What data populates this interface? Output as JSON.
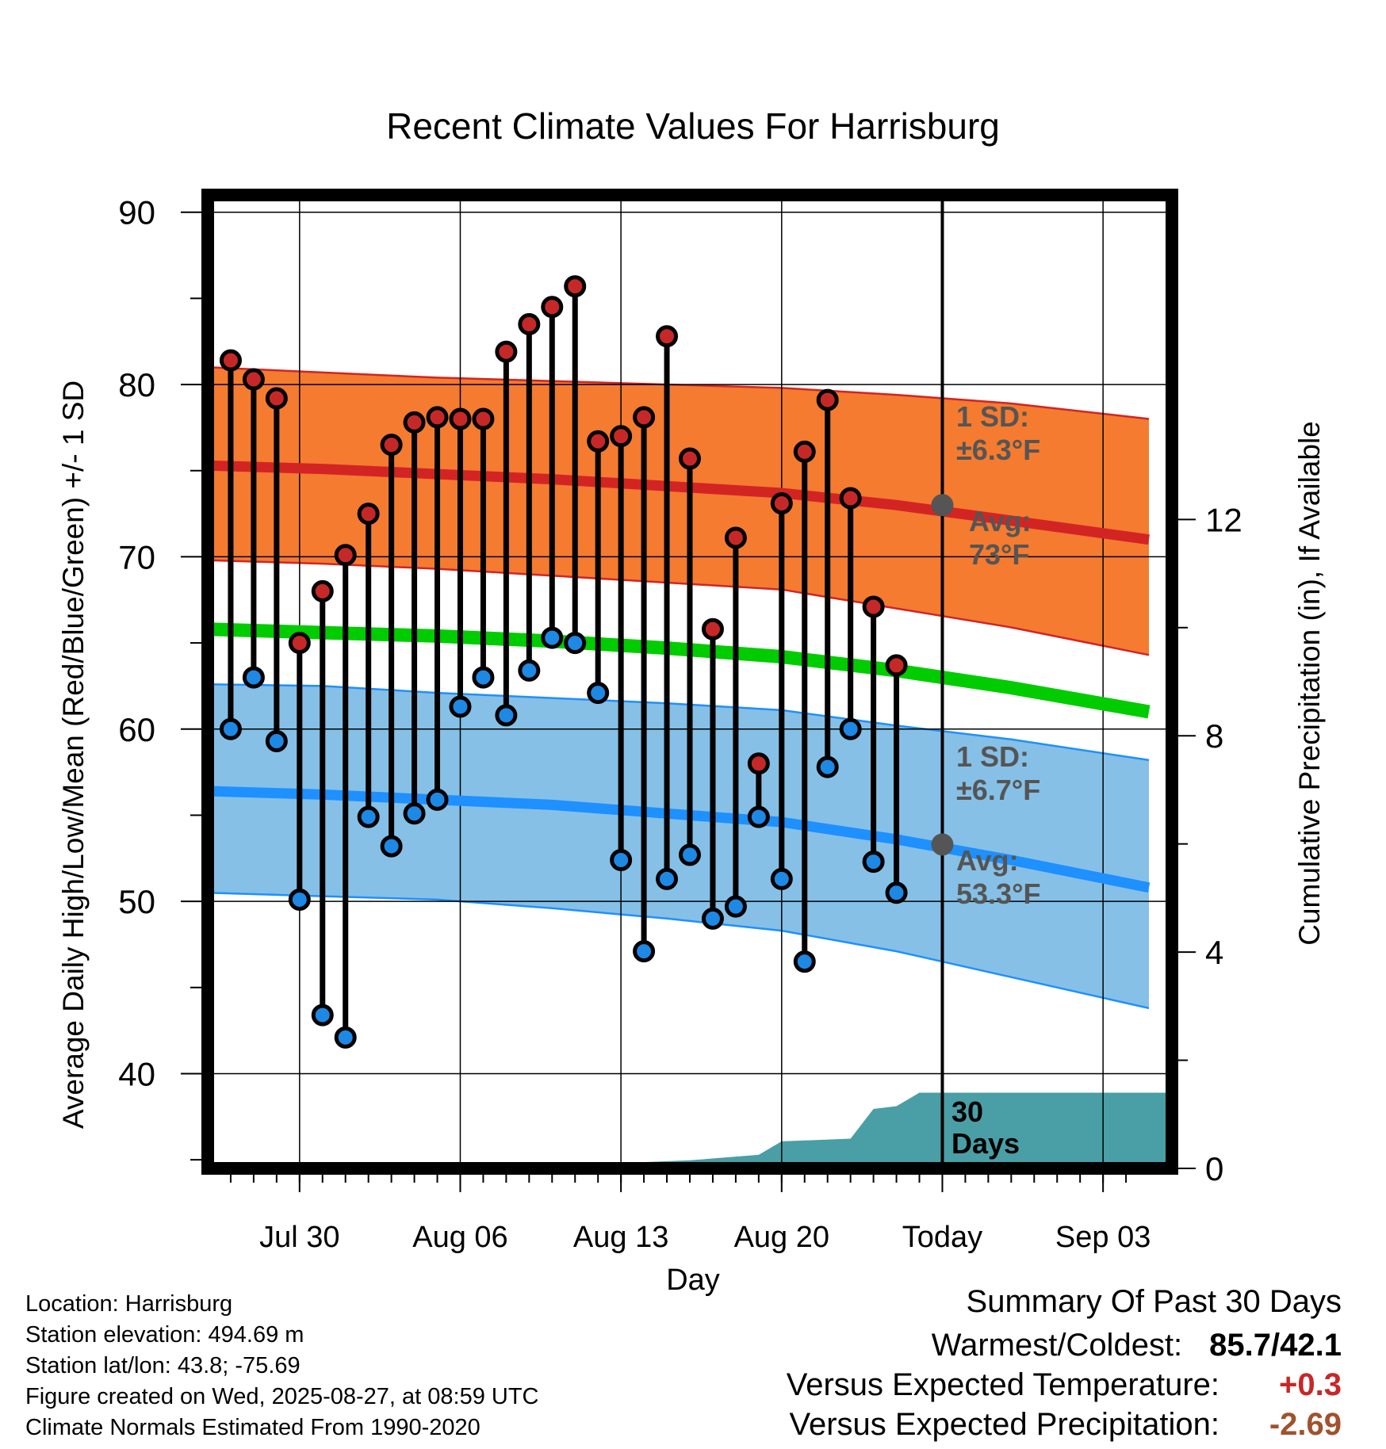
{
  "title": "Recent Climate Values For Harrisburg",
  "chart_data": {
    "type": "line",
    "title": "Recent Climate Values For Harrisburg",
    "xlabel": "Day",
    "ylabel": "Average Daily High/Low/Mean (Red/Blue/Green) +/- 1 SD",
    "y2label": "Cumulative Precipitation (in), If Available",
    "ylim": [
      34.5,
      91
    ],
    "y_ticks": [
      40,
      50,
      60,
      70,
      80,
      90
    ],
    "y2lim": [
      0,
      18
    ],
    "y2_ticks": [
      0,
      4,
      8,
      12
    ],
    "x_range": [
      "2025-07-26",
      "2025-09-06"
    ],
    "x_ticks": [
      {
        "date": "2025-07-30",
        "label": "Jul 30"
      },
      {
        "date": "2025-08-06",
        "label": "Aug 06"
      },
      {
        "date": "2025-08-13",
        "label": "Aug 13"
      },
      {
        "date": "2025-08-20",
        "label": "Aug 20"
      },
      {
        "date": "2025-08-27",
        "label": "Today"
      },
      {
        "date": "2025-09-03",
        "label": "Sep 03"
      }
    ],
    "grid": true,
    "today": "2025-08-27",
    "daily": {
      "dates": [
        "2025-07-27",
        "2025-07-28",
        "2025-07-29",
        "2025-07-30",
        "2025-07-31",
        "2025-08-01",
        "2025-08-02",
        "2025-08-03",
        "2025-08-04",
        "2025-08-05",
        "2025-08-06",
        "2025-08-07",
        "2025-08-08",
        "2025-08-09",
        "2025-08-10",
        "2025-08-11",
        "2025-08-12",
        "2025-08-13",
        "2025-08-14",
        "2025-08-15",
        "2025-08-16",
        "2025-08-17",
        "2025-08-18",
        "2025-08-19",
        "2025-08-20",
        "2025-08-21",
        "2025-08-22",
        "2025-08-23",
        "2025-08-24",
        "2025-08-25",
        "2025-08-26"
      ],
      "highs": [
        81.4,
        80.3,
        79.2,
        65.0,
        68.0,
        70.1,
        72.5,
        76.5,
        77.8,
        78.1,
        78.0,
        78.0,
        81.9,
        83.5,
        84.5,
        85.7,
        76.7,
        77.0,
        78.1,
        82.8,
        75.7,
        65.8,
        71.1,
        58.0,
        73.1,
        76.1,
        79.1,
        73.4,
        67.1,
        63.7,
        null
      ],
      "lows": [
        60.0,
        63.0,
        59.3,
        50.1,
        43.4,
        42.1,
        54.9,
        53.2,
        55.1,
        55.9,
        61.3,
        63.0,
        60.8,
        63.4,
        65.3,
        65.0,
        62.1,
        52.4,
        47.1,
        51.3,
        52.7,
        49.0,
        49.7,
        54.9,
        51.3,
        46.5,
        57.8,
        60.0,
        52.3,
        50.5,
        null
      ]
    },
    "normals": {
      "dates": [
        "2025-07-26",
        "2025-07-31",
        "2025-08-05",
        "2025-08-10",
        "2025-08-15",
        "2025-08-20",
        "2025-08-25",
        "2025-08-30",
        "2025-09-05"
      ],
      "high_mean": [
        75.3,
        75.1,
        74.8,
        74.5,
        74.1,
        73.7,
        73.0,
        72.1,
        71.0
      ],
      "high_upper": [
        81.0,
        80.7,
        80.4,
        80.2,
        80.0,
        79.8,
        79.4,
        78.9,
        78.0
      ],
      "high_lower": [
        69.8,
        69.6,
        69.3,
        68.9,
        68.5,
        68.1,
        67.0,
        65.9,
        64.3
      ],
      "low_mean": [
        56.4,
        56.2,
        55.9,
        55.6,
        55.1,
        54.6,
        53.6,
        52.4,
        50.8
      ],
      "low_upper": [
        62.6,
        62.5,
        62.1,
        61.8,
        61.5,
        61.1,
        60.2,
        59.4,
        58.2
      ],
      "low_lower": [
        50.5,
        50.3,
        50.1,
        49.6,
        49.0,
        48.3,
        47.1,
        45.6,
        43.8
      ],
      "mean": [
        65.8,
        65.6,
        65.4,
        65.1,
        64.7,
        64.2,
        63.4,
        62.4,
        61.0
      ]
    },
    "precip_cumulative": {
      "dates": [
        "2025-07-26",
        "2025-08-05",
        "2025-08-13",
        "2025-08-16",
        "2025-08-19",
        "2025-08-20",
        "2025-08-23",
        "2025-08-24",
        "2025-08-25",
        "2025-08-26",
        "2025-09-06"
      ],
      "values": [
        0.0,
        0.05,
        0.1,
        0.15,
        0.25,
        0.5,
        0.55,
        1.1,
        1.15,
        1.4,
        1.4
      ]
    },
    "annotations": [
      {
        "text": "1 SD:",
        "color": "#555555"
      },
      {
        "text": "±6.3°F",
        "color": "#555555"
      },
      {
        "text": "Avg:",
        "color": "#555555"
      },
      {
        "text": "73°F",
        "color": "#555555"
      },
      {
        "text": "1 SD:",
        "color": "#555555"
      },
      {
        "text": "±6.7°F",
        "color": "#555555"
      },
      {
        "text": "Avg:",
        "color": "#555555"
      },
      {
        "text": "53.3°F",
        "color": "#555555"
      },
      {
        "text": "30",
        "color": "#000000"
      },
      {
        "text": "Days",
        "color": "#000000"
      }
    ],
    "today_high_avg": 73.0,
    "today_low_avg": 53.3,
    "colors": {
      "high_band": "#f47b30",
      "high_line": "#d32424",
      "low_band": "#86c0e6",
      "low_line": "#1e90ff",
      "mean_line": "#00cc00",
      "precip": "#4a9ea6",
      "high_marker": "#c62828",
      "low_marker": "#1e88e5",
      "today_marker": "#555555"
    }
  },
  "info": {
    "location": "Location: Harrisburg",
    "elevation": "Station elevation: 494.69 m",
    "latlon": "Station lat/lon: 43.8; -75.69",
    "created": "Figure created on Wed, 2025-08-27, at 08:59 UTC",
    "normals": "Climate Normals Estimated From 1990-2020"
  },
  "summary": {
    "title": "Summary Of Past 30 Days",
    "warm_cold_label": "Warmest/Coldest:",
    "warm_cold_value": "85.7/42.1",
    "temp_label": "Versus Expected Temperature:",
    "temp_value": "+0.3",
    "precip_label": "Versus Expected Precipitation:",
    "precip_value": "-2.69"
  }
}
